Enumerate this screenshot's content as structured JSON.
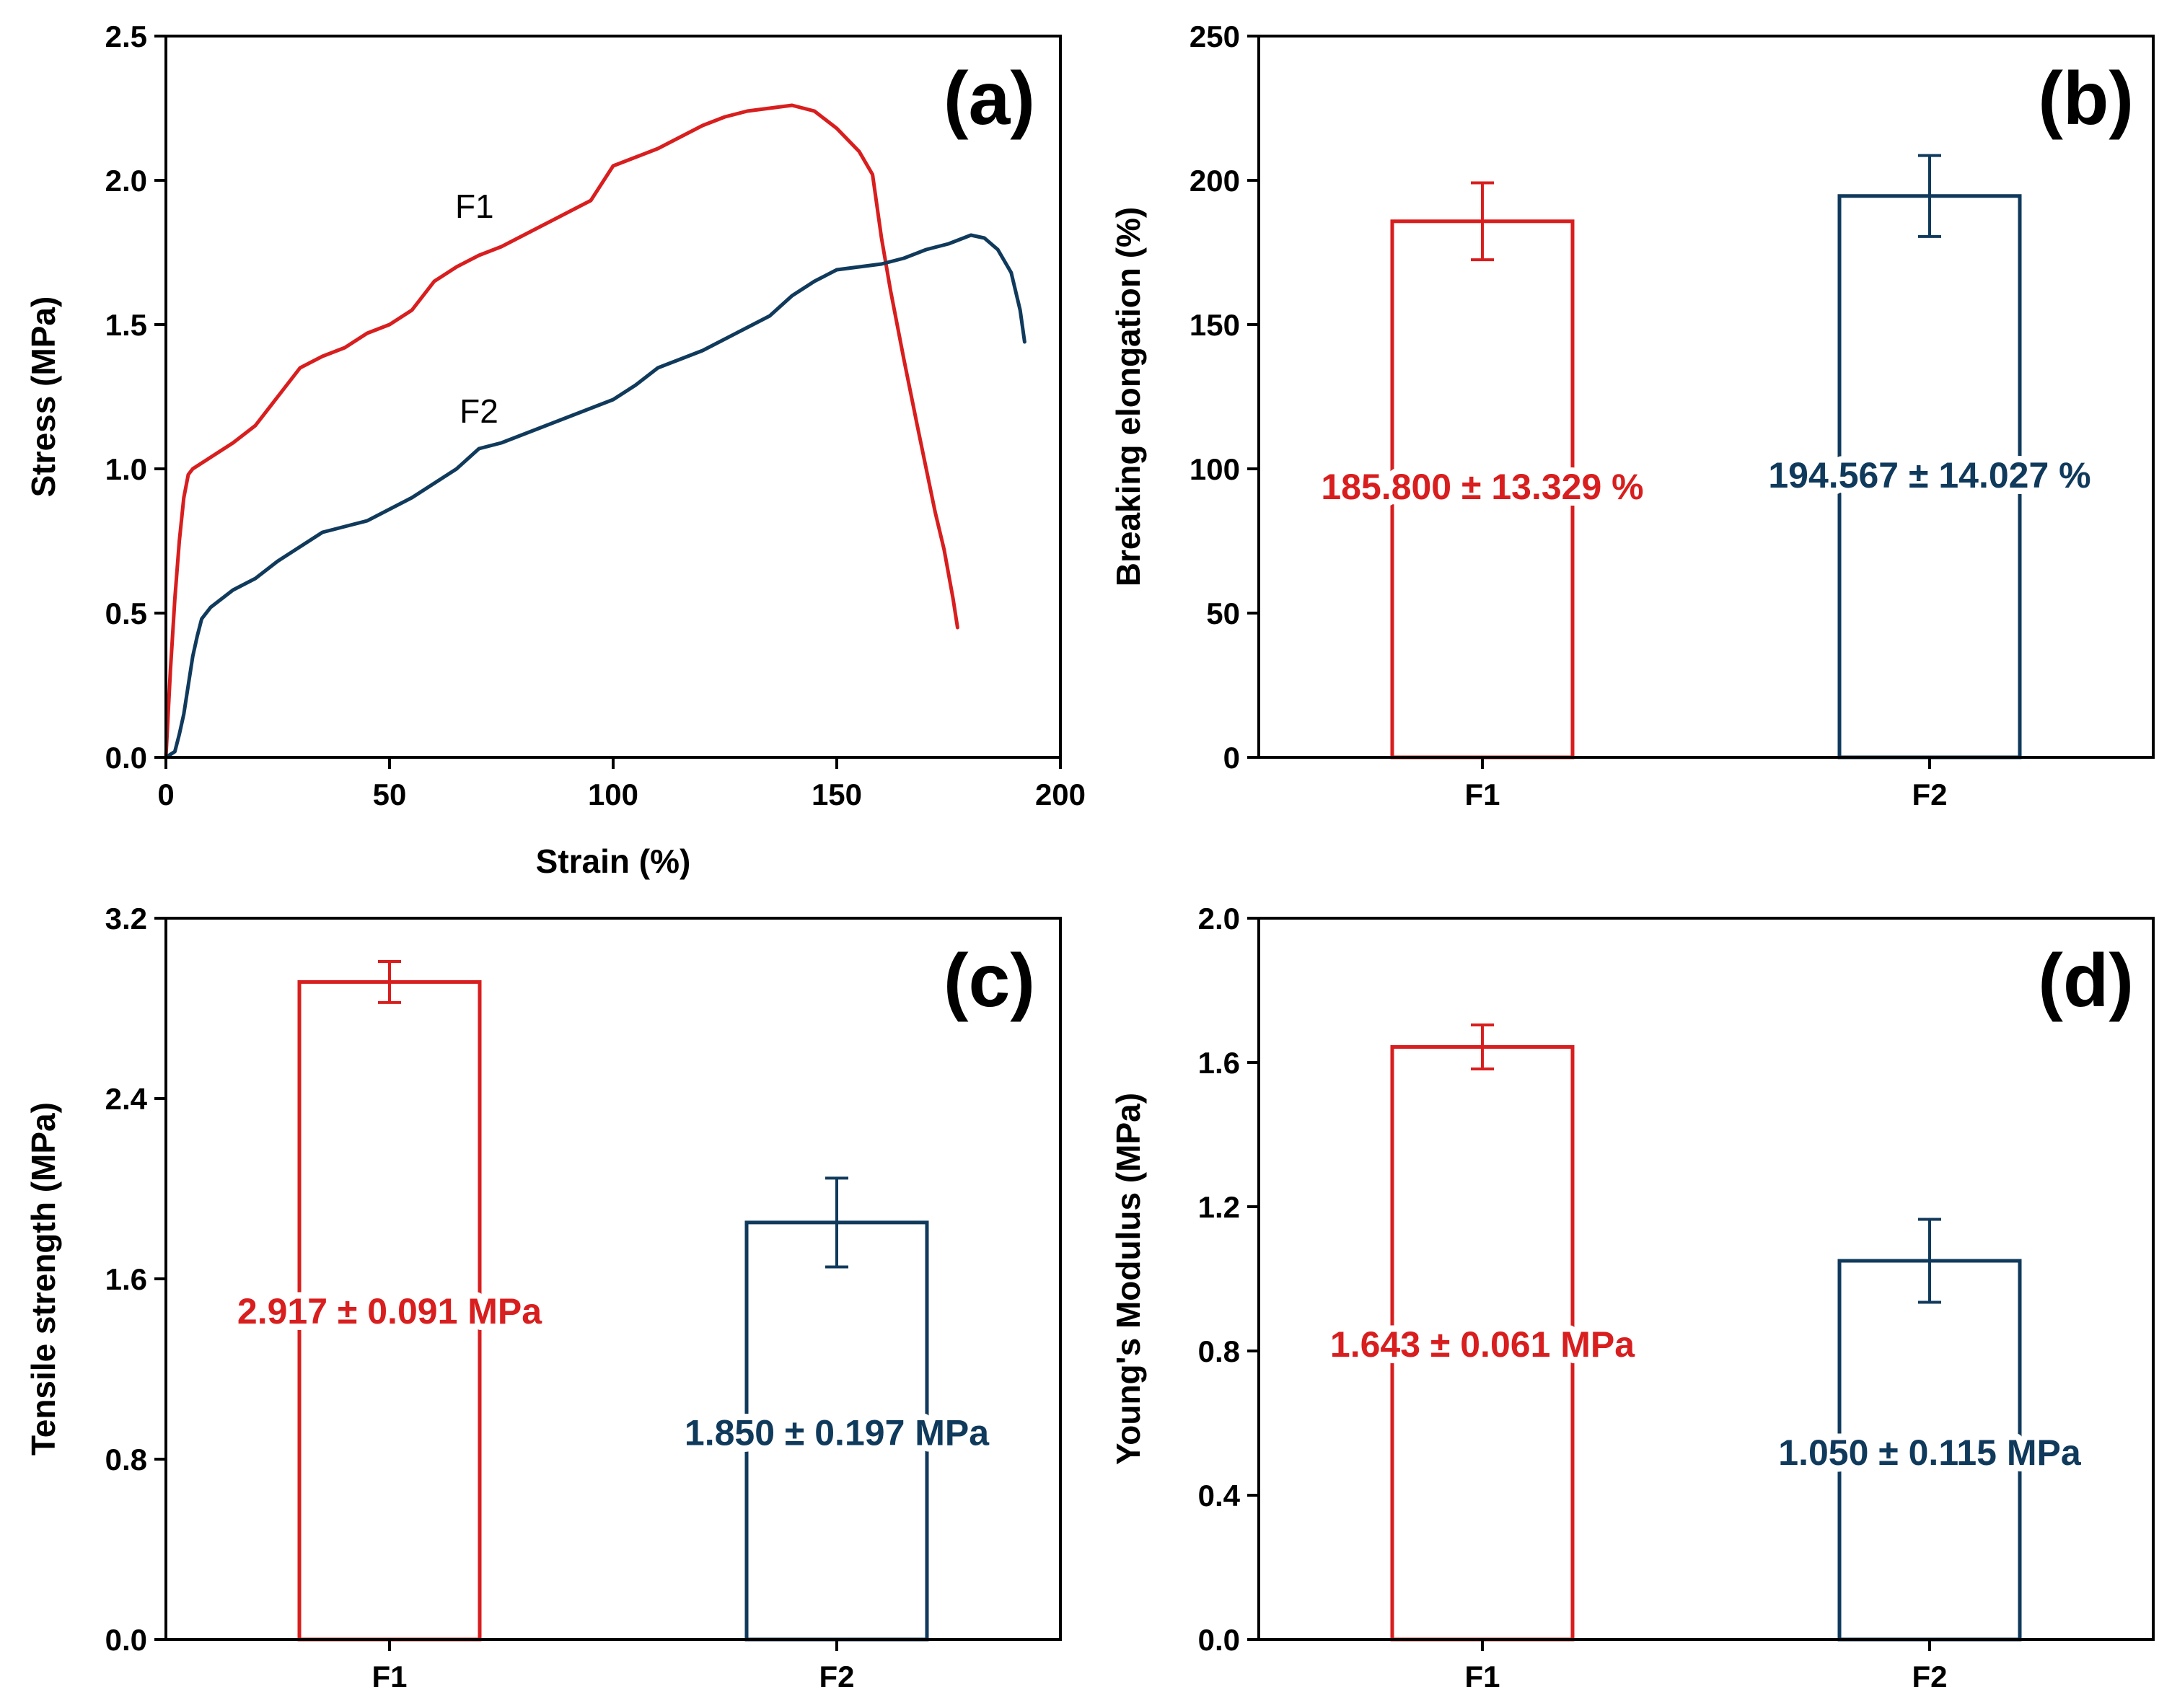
{
  "colors": {
    "F1": "#d81e1e",
    "F2": "#103a5c",
    "axis": "#000000"
  },
  "chart_data": [
    {
      "panel": "(a)",
      "type": "line",
      "xlabel": "Strain (%)",
      "ylabel": "Stress (MPa)",
      "xlim": [
        0,
        200
      ],
      "ylim": [
        0,
        2.5
      ],
      "xticks": [
        0,
        50,
        100,
        150,
        200
      ],
      "xtick_labels": [
        "0",
        "50",
        "100",
        "150",
        "200"
      ],
      "yticks": [
        0,
        0.5,
        1.0,
        1.5,
        2.0,
        2.5
      ],
      "ytick_labels": [
        "0.0",
        "0.5",
        "1.0",
        "1.5",
        "2.0",
        "2.5"
      ],
      "series": [
        {
          "name": "F1",
          "color": "#d81e1e",
          "label_at": [
            69,
            1.91
          ],
          "x": [
            0,
            1,
            2,
            3,
            4,
            5,
            6,
            8,
            10,
            12,
            15,
            20,
            25,
            30,
            35,
            40,
            45,
            50,
            55,
            60,
            65,
            70,
            75,
            80,
            85,
            90,
            95,
            100,
            105,
            110,
            115,
            120,
            125,
            130,
            135,
            140,
            145,
            150,
            155,
            158,
            160,
            162,
            165,
            168,
            170,
            172,
            174,
            176,
            177
          ],
          "y": [
            0,
            0.3,
            0.55,
            0.75,
            0.9,
            0.98,
            1.0,
            1.02,
            1.04,
            1.06,
            1.09,
            1.15,
            1.25,
            1.35,
            1.39,
            1.42,
            1.47,
            1.5,
            1.55,
            1.65,
            1.7,
            1.74,
            1.77,
            1.81,
            1.85,
            1.89,
            1.93,
            2.05,
            2.08,
            2.11,
            2.15,
            2.19,
            2.22,
            2.24,
            2.25,
            2.26,
            2.24,
            2.18,
            2.1,
            2.02,
            1.8,
            1.62,
            1.38,
            1.15,
            1.0,
            0.85,
            0.72,
            0.55,
            0.45
          ]
        },
        {
          "name": "F2",
          "color": "#103a5c",
          "label_at": [
            70,
            1.2
          ],
          "x": [
            0,
            2,
            3,
            4,
            5,
            6,
            7,
            8,
            9,
            10,
            15,
            20,
            25,
            30,
            35,
            40,
            45,
            50,
            55,
            60,
            65,
            70,
            75,
            80,
            85,
            90,
            95,
            100,
            105,
            110,
            115,
            120,
            125,
            130,
            135,
            140,
            145,
            150,
            155,
            160,
            165,
            170,
            175,
            180,
            183,
            186,
            189,
            191,
            192
          ],
          "y": [
            0,
            0.02,
            0.08,
            0.15,
            0.25,
            0.35,
            0.42,
            0.48,
            0.5,
            0.52,
            0.58,
            0.62,
            0.68,
            0.73,
            0.78,
            0.8,
            0.82,
            0.86,
            0.9,
            0.95,
            1.0,
            1.07,
            1.09,
            1.12,
            1.15,
            1.18,
            1.21,
            1.24,
            1.29,
            1.35,
            1.38,
            1.41,
            1.45,
            1.49,
            1.53,
            1.6,
            1.65,
            1.69,
            1.7,
            1.71,
            1.73,
            1.76,
            1.78,
            1.81,
            1.8,
            1.76,
            1.68,
            1.55,
            1.44
          ]
        }
      ]
    },
    {
      "panel": "(b)",
      "type": "bar",
      "ylabel": "Breaking elongation (%)",
      "ylim": [
        0,
        250
      ],
      "yticks": [
        0,
        50,
        100,
        150,
        200,
        250
      ],
      "ytick_labels": [
        "0",
        "50",
        "100",
        "150",
        "200",
        "250"
      ],
      "categories": [
        "F1",
        "F2"
      ],
      "values": [
        185.8,
        194.567
      ],
      "errors": [
        13.329,
        14.027
      ],
      "labels": [
        "185.800 ± 13.329 %",
        "194.567 ± 14.027 %"
      ],
      "label_y": [
        94,
        98
      ]
    },
    {
      "panel": "(c)",
      "type": "bar",
      "ylabel": "Tensile strength (MPa)",
      "ylim": [
        0,
        3.2
      ],
      "yticks": [
        0,
        0.8,
        1.6,
        2.4,
        3.2
      ],
      "ytick_labels": [
        "0.0",
        "0.8",
        "1.6",
        "2.4",
        "3.2"
      ],
      "categories": [
        "F1",
        "F2"
      ],
      "values": [
        2.917,
        1.85
      ],
      "errors": [
        0.091,
        0.197
      ],
      "labels": [
        "2.917 ± 0.091 MPa",
        "1.850 ± 0.197 MPa"
      ],
      "label_y": [
        1.46,
        0.92
      ]
    },
    {
      "panel": "(d)",
      "type": "bar",
      "ylabel": "Young's Modulus (MPa)",
      "ylim": [
        0,
        2.0
      ],
      "yticks": [
        0,
        0.4,
        0.8,
        1.2,
        1.6,
        2.0
      ],
      "ytick_labels": [
        "0.0",
        "0.4",
        "0.8",
        "1.2",
        "1.6",
        "2.0"
      ],
      "categories": [
        "F1",
        "F2"
      ],
      "values": [
        1.643,
        1.05
      ],
      "errors": [
        0.061,
        0.115
      ],
      "labels": [
        "1.643 ± 0.061 MPa",
        "1.050 ± 0.115 MPa"
      ],
      "label_y": [
        0.82,
        0.52
      ]
    }
  ]
}
